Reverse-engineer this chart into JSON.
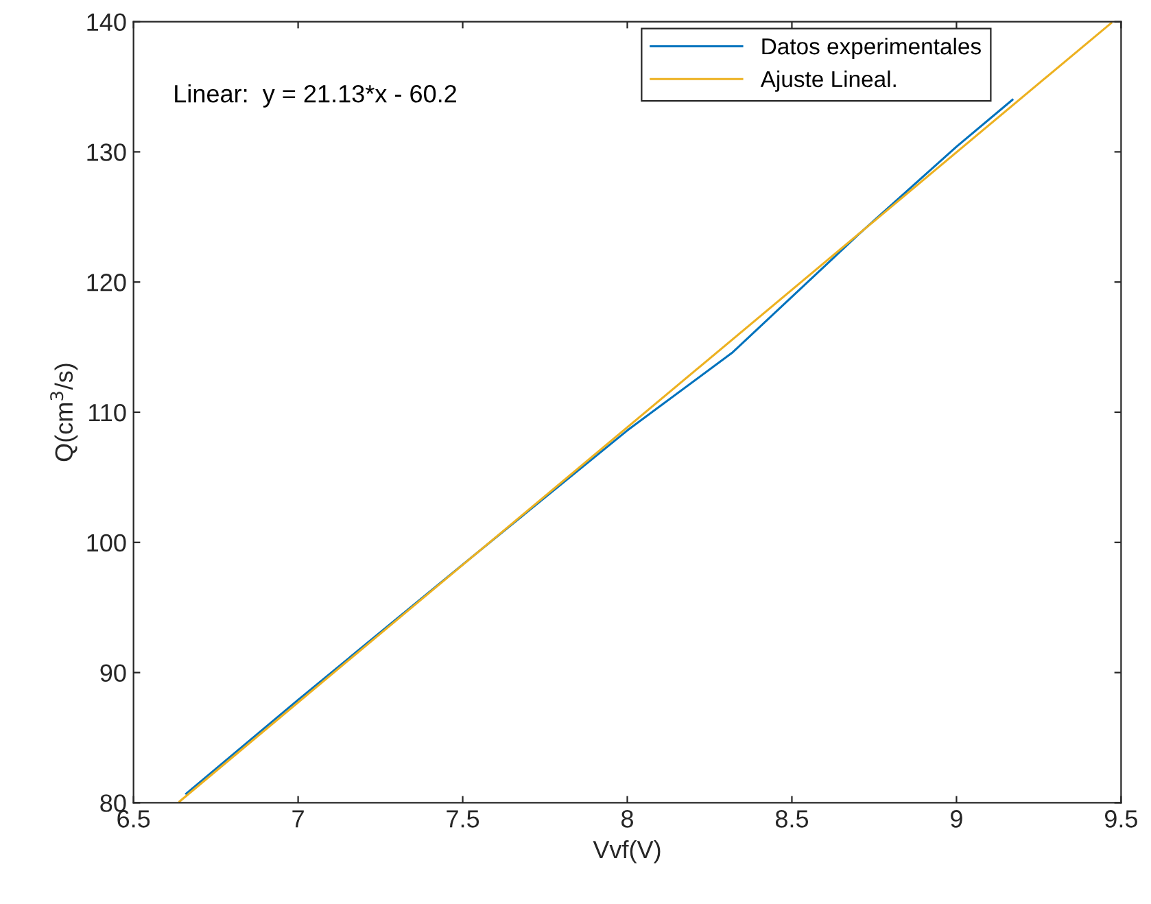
{
  "chart_data": {
    "type": "line",
    "xlabel": "Vvf(V)",
    "ylabel": "Q(cm$^{3}$/s)",
    "series": [
      {
        "name": "Datos experimentales",
        "color": "#0072bd",
        "x": [
          6.66,
          7.0,
          7.5,
          8.0,
          8.32,
          8.7,
          9.0,
          9.17
        ],
        "values": [
          80.7,
          87.9,
          98.3,
          108.6,
          114.6,
          123.6,
          130.4,
          134.0
        ]
      },
      {
        "name": "Ajuste Lineal.",
        "color": "#edb120",
        "x": [
          6.64,
          9.47
        ],
        "values": [
          80.1,
          139.9
        ]
      }
    ],
    "annotations": [
      "Linear:  y = 21.13*x - 60.2"
    ],
    "xlim": [
      6.5,
      9.5
    ],
    "xticks": [
      6.5,
      7,
      7.5,
      8,
      8.5,
      9,
      9.5
    ],
    "ylim": [
      80,
      140
    ],
    "yticks": [
      80,
      90,
      100,
      110,
      120,
      130,
      140
    ],
    "grid": false,
    "legend": "top right",
    "marker": "none",
    "line_style": "solid"
  }
}
